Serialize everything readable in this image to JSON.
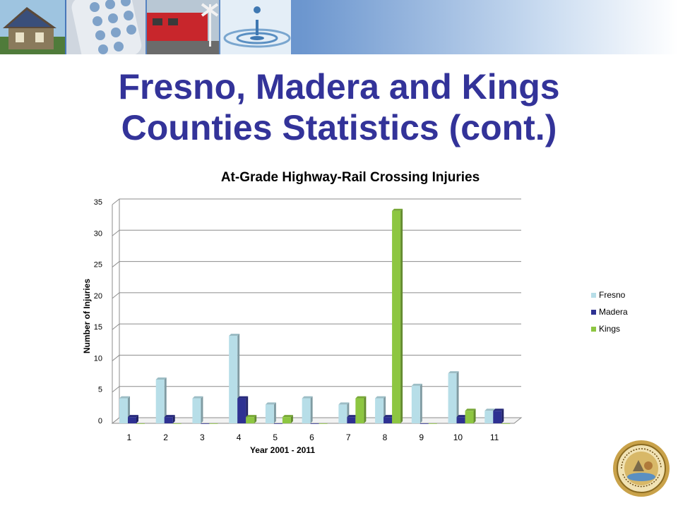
{
  "slide": {
    "title_line1": "Fresno, Madera and Kings",
    "title_line2": "Counties Statistics (cont.)"
  },
  "banner": {
    "photos": [
      "house-solar-photo",
      "telephone-keypad-photo",
      "train-crossing-photo",
      "water-drop-photo"
    ]
  },
  "seal": {
    "text": "PUBLIC UTILITIES COMMISSION STATE OF CALIFORNIA",
    "motto": "EUREKA"
  },
  "chart_data": {
    "type": "bar",
    "title": "At-Grade Highway-Rail Crossing Injuries",
    "xlabel": "Year 2001 - 2011",
    "ylabel": "Number of Injuries",
    "categories": [
      "1",
      "2",
      "3",
      "4",
      "5",
      "6",
      "7",
      "8",
      "9",
      "10",
      "11"
    ],
    "series": [
      {
        "name": "Fresno",
        "color": "#b7dee8",
        "values": [
          4,
          7,
          4,
          14,
          3,
          4,
          3,
          4,
          6,
          8,
          2
        ]
      },
      {
        "name": "Madera",
        "color": "#2e3192",
        "values": [
          1,
          1,
          0,
          4,
          0,
          0,
          1,
          1,
          0,
          1,
          2
        ]
      },
      {
        "name": "Kings",
        "color": "#8dc641",
        "values": [
          0,
          0,
          0,
          1,
          1,
          0,
          4,
          34,
          0,
          2,
          0
        ]
      }
    ],
    "yticks": [
      0,
      5,
      10,
      15,
      20,
      25,
      30,
      35
    ],
    "ylim": [
      0,
      35
    ],
    "grid": true,
    "legend": "right"
  }
}
